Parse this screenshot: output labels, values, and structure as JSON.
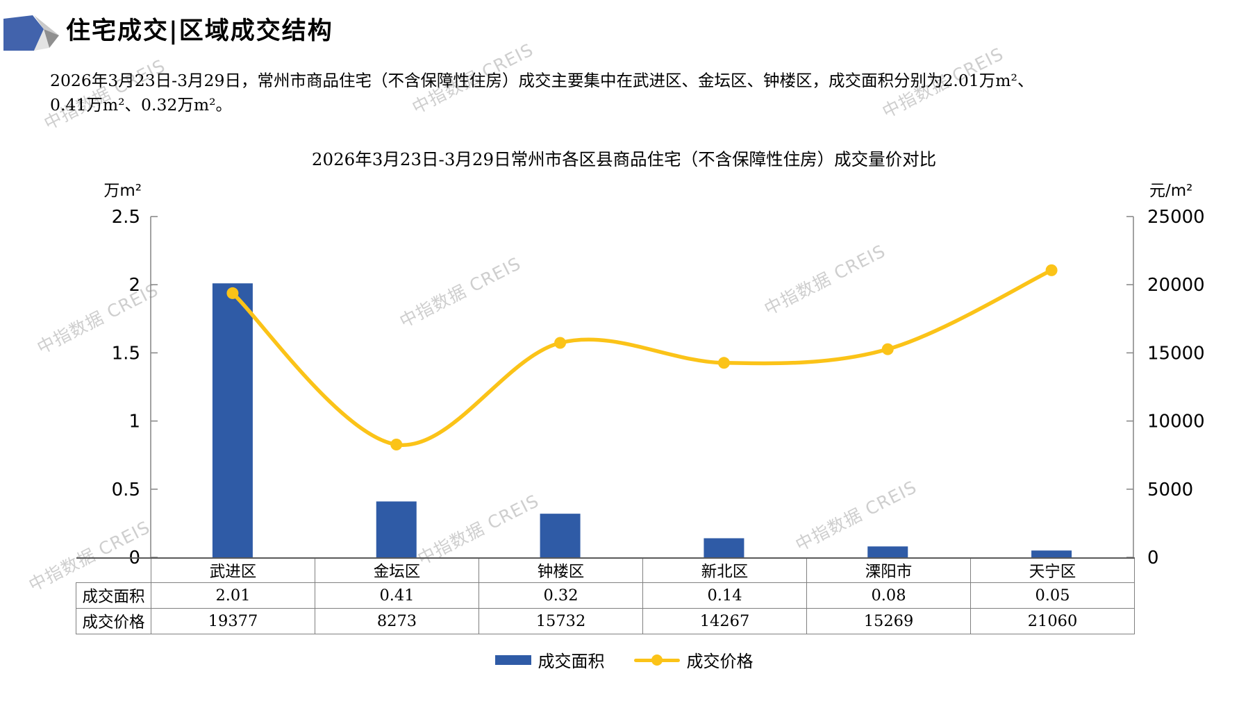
{
  "header": {
    "title": "住宅成交|区域成交结构"
  },
  "intro": {
    "line1": "2026年3月23日-3月29日，常州市商品住宅（不含保障性住房）成交主要集中在武进区、金坛区、钟楼区，成交面积分别为2.01万m²、",
    "line2": "0.41万m²、0.32万m²。"
  },
  "watermark": {
    "text": "中指数据 CREIS"
  },
  "chart_data": {
    "type": "bar",
    "subtype": "bar+line combo, dual axis",
    "title": "2026年3月23日-3月29日常州市各区县商品住宅（不含保障性住房）成交量价对比",
    "categories": [
      "武进区",
      "金坛区",
      "钟楼区",
      "新北区",
      "溧阳市",
      "天宁区"
    ],
    "series": [
      {
        "name": "成交面积",
        "type": "bar",
        "axis": "left",
        "color": "#2F5BA6",
        "values": [
          2.01,
          0.41,
          0.32,
          0.14,
          0.08,
          0.05
        ]
      },
      {
        "name": "成交价格",
        "type": "line",
        "axis": "right",
        "color": "#FBC318",
        "values": [
          19377,
          8273,
          15732,
          14267,
          15269,
          21060
        ]
      }
    ],
    "left_axis": {
      "unit": "万m²",
      "min": 0,
      "max": 2.5,
      "ticks": [
        "2.5",
        "2",
        "1.5",
        "1",
        "0.5",
        "0"
      ]
    },
    "right_axis": {
      "unit": "元/m²",
      "min": 0,
      "max": 25000,
      "ticks": [
        "25000",
        "20000",
        "15000",
        "10000",
        "5000",
        "0"
      ]
    },
    "legend_position": "bottom",
    "grid": false
  },
  "table": {
    "row_labels": [
      "成交面积",
      "成交价格"
    ]
  },
  "colors": {
    "bar": "#2F5BA6",
    "line": "#FBC318",
    "axis": "#8a8a8a",
    "border": "#7f7f7f"
  }
}
